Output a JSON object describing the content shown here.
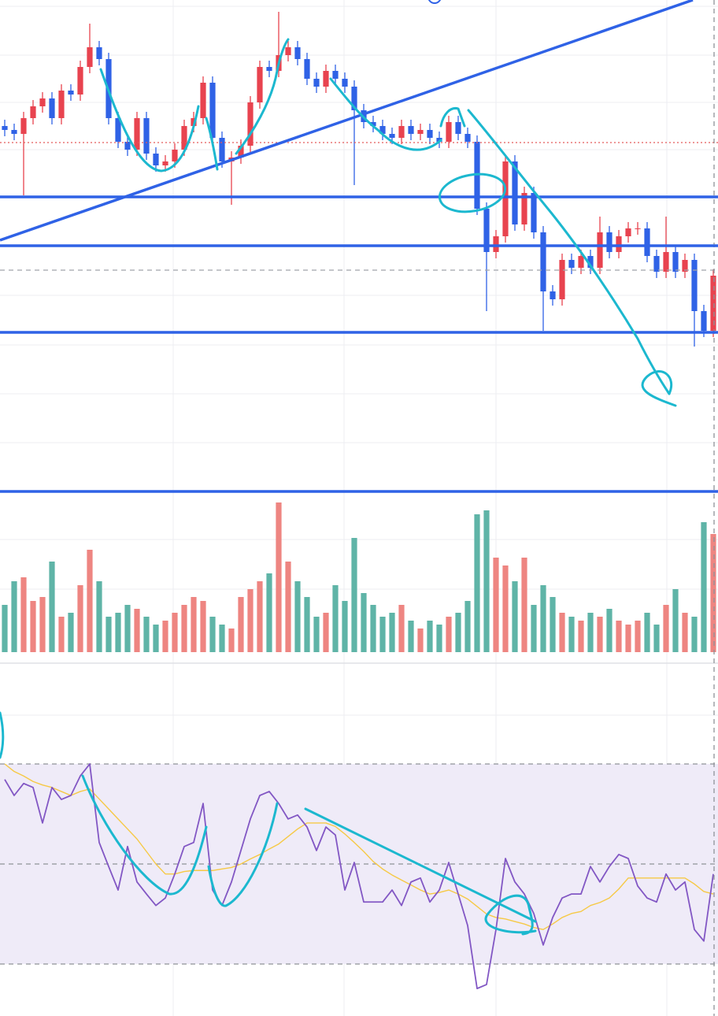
{
  "chart_data": [
    {
      "type": "candlestick",
      "open": [
        400,
        395,
        390,
        410,
        425,
        435,
        410,
        445,
        440,
        475,
        500,
        485,
        410,
        380,
        370,
        410,
        365,
        350,
        355,
        370,
        400,
        410,
        455,
        385,
        355,
        360,
        375,
        430,
        475,
        470,
        490,
        500,
        485,
        460,
        450,
        470,
        460,
        450,
        420,
        405,
        400,
        390,
        385,
        400,
        390,
        395,
        385,
        380,
        405,
        390,
        380,
        295,
        240,
        260,
        355,
        275,
        315,
        265,
        190,
        180,
        230,
        220,
        235,
        220,
        265,
        240,
        260,
        270,
        270,
        235,
        215,
        240,
        215,
        230,
        165,
        140
      ],
      "high": [
        408,
        403,
        418,
        433,
        443,
        443,
        453,
        453,
        483,
        530,
        508,
        493,
        418,
        388,
        418,
        418,
        373,
        363,
        378,
        408,
        418,
        463,
        463,
        393,
        368,
        383,
        438,
        483,
        483,
        545,
        508,
        508,
        493,
        468,
        478,
        478,
        468,
        458,
        428,
        413,
        408,
        398,
        408,
        408,
        403,
        403,
        393,
        413,
        413,
        398,
        388,
        303,
        268,
        363,
        363,
        323,
        323,
        273,
        198,
        238,
        238,
        243,
        243,
        285,
        273,
        268,
        278,
        278,
        278,
        243,
        285,
        248,
        238,
        238,
        173,
        218
      ],
      "low": [
        387,
        382,
        312,
        402,
        417,
        402,
        402,
        432,
        432,
        467,
        477,
        402,
        372,
        362,
        362,
        357,
        342,
        342,
        347,
        362,
        392,
        402,
        377,
        347,
        300,
        352,
        367,
        422,
        462,
        462,
        482,
        477,
        452,
        442,
        442,
        452,
        442,
        325,
        397,
        392,
        382,
        377,
        377,
        382,
        382,
        377,
        372,
        372,
        382,
        372,
        287,
        165,
        232,
        252,
        267,
        267,
        257,
        140,
        172,
        172,
        212,
        212,
        212,
        212,
        232,
        232,
        252,
        262,
        227,
        207,
        207,
        207,
        207,
        120,
        132,
        132
      ],
      "close": [
        395,
        390,
        410,
        425,
        435,
        410,
        445,
        440,
        475,
        500,
        485,
        410,
        380,
        370,
        410,
        365,
        350,
        355,
        370,
        400,
        410,
        455,
        385,
        355,
        360,
        375,
        430,
        475,
        470,
        490,
        500,
        485,
        460,
        450,
        470,
        460,
        450,
        420,
        405,
        400,
        390,
        385,
        400,
        390,
        395,
        385,
        380,
        405,
        390,
        380,
        295,
        240,
        260,
        355,
        275,
        315,
        265,
        190,
        180,
        230,
        220,
        235,
        220,
        265,
        240,
        260,
        270,
        270,
        235,
        215,
        240,
        215,
        230,
        165,
        140,
        210
      ],
      "up_color": "#e8434f",
      "down_color": "#2f62e6",
      "ylim": [
        -270,
        560
      ],
      "volume": [
        60,
        90,
        95,
        65,
        70,
        115,
        45,
        50,
        85,
        130,
        90,
        45,
        50,
        60,
        55,
        45,
        35,
        40,
        50,
        60,
        70,
        65,
        45,
        35,
        30,
        70,
        80,
        90,
        100,
        190,
        115,
        90,
        70,
        45,
        50,
        85,
        65,
        145,
        75,
        60,
        45,
        50,
        60,
        40,
        30,
        40,
        35,
        45,
        50,
        65,
        175,
        180,
        120,
        110,
        90,
        120,
        60,
        85,
        70,
        50,
        45,
        40,
        50,
        45,
        55,
        40,
        35,
        40,
        50,
        35,
        60,
        80,
        50,
        45,
        165,
        150
      ],
      "volume_up_color": "#ee8581",
      "volume_down_color": "#5fb4a7",
      "y2lim": [
        0,
        830
      ]
    },
    {
      "type": "line",
      "ylim": [
        20,
        90
      ],
      "levels": [
        30,
        50,
        70
      ],
      "band_color": "#efebf8",
      "series": [
        {
          "color": "#8257c4",
          "values": [
            66.9,
            63.7,
            66.1,
            65.3,
            58.2,
            65.3,
            62.9,
            63.7,
            67.6,
            70,
            54.3,
            49.5,
            44.8,
            53.5,
            46.4,
            44,
            41.7,
            43.2,
            48,
            53.5,
            54.3,
            62.1,
            44.8,
            41.7,
            46.4,
            52.7,
            59,
            63.7,
            64.5,
            62.1,
            59,
            59.8,
            57.4,
            52.7,
            57.4,
            55.8,
            44.8,
            50.3,
            42.4,
            42.4,
            42.4,
            44.8,
            41.7,
            46.4,
            47.2,
            42.4,
            44.8,
            50.3,
            44,
            37.7,
            25.1,
            25.9,
            36.9,
            51.1,
            46.4,
            44,
            40.1,
            33.8,
            39.3,
            43.2,
            44,
            44,
            49.5,
            46.4,
            49.5,
            51.9,
            51.1,
            45.6,
            43.2,
            42.4,
            48,
            44.8,
            46.4,
            36.9,
            34.6,
            48
          ]
        },
        {
          "color": "#f6c945",
          "values": [
            70,
            68.5,
            67.6,
            66.5,
            65.8,
            65.3,
            64.5,
            63.7,
            64.5,
            65,
            63,
            61,
            59,
            57,
            55,
            52.5,
            50,
            48,
            48,
            48.5,
            48.7,
            48.7,
            48.7,
            49,
            49.3,
            50,
            51,
            51.9,
            53,
            54,
            55.5,
            57,
            58.2,
            58.2,
            58.2,
            57.5,
            56,
            54.3,
            52.5,
            50.5,
            49,
            47.8,
            46.8,
            45.8,
            44.8,
            44,
            44.3,
            44.8,
            44,
            43,
            41.5,
            40,
            39.3,
            39,
            38.5,
            38,
            37.3,
            36.9,
            38,
            39.3,
            40.1,
            40.5,
            41.7,
            42.3,
            43.2,
            45,
            47.2,
            47.2,
            47.2,
            47.2,
            47.2,
            47.2,
            47.2,
            46,
            44.5,
            44
          ]
        }
      ]
    }
  ]
}
